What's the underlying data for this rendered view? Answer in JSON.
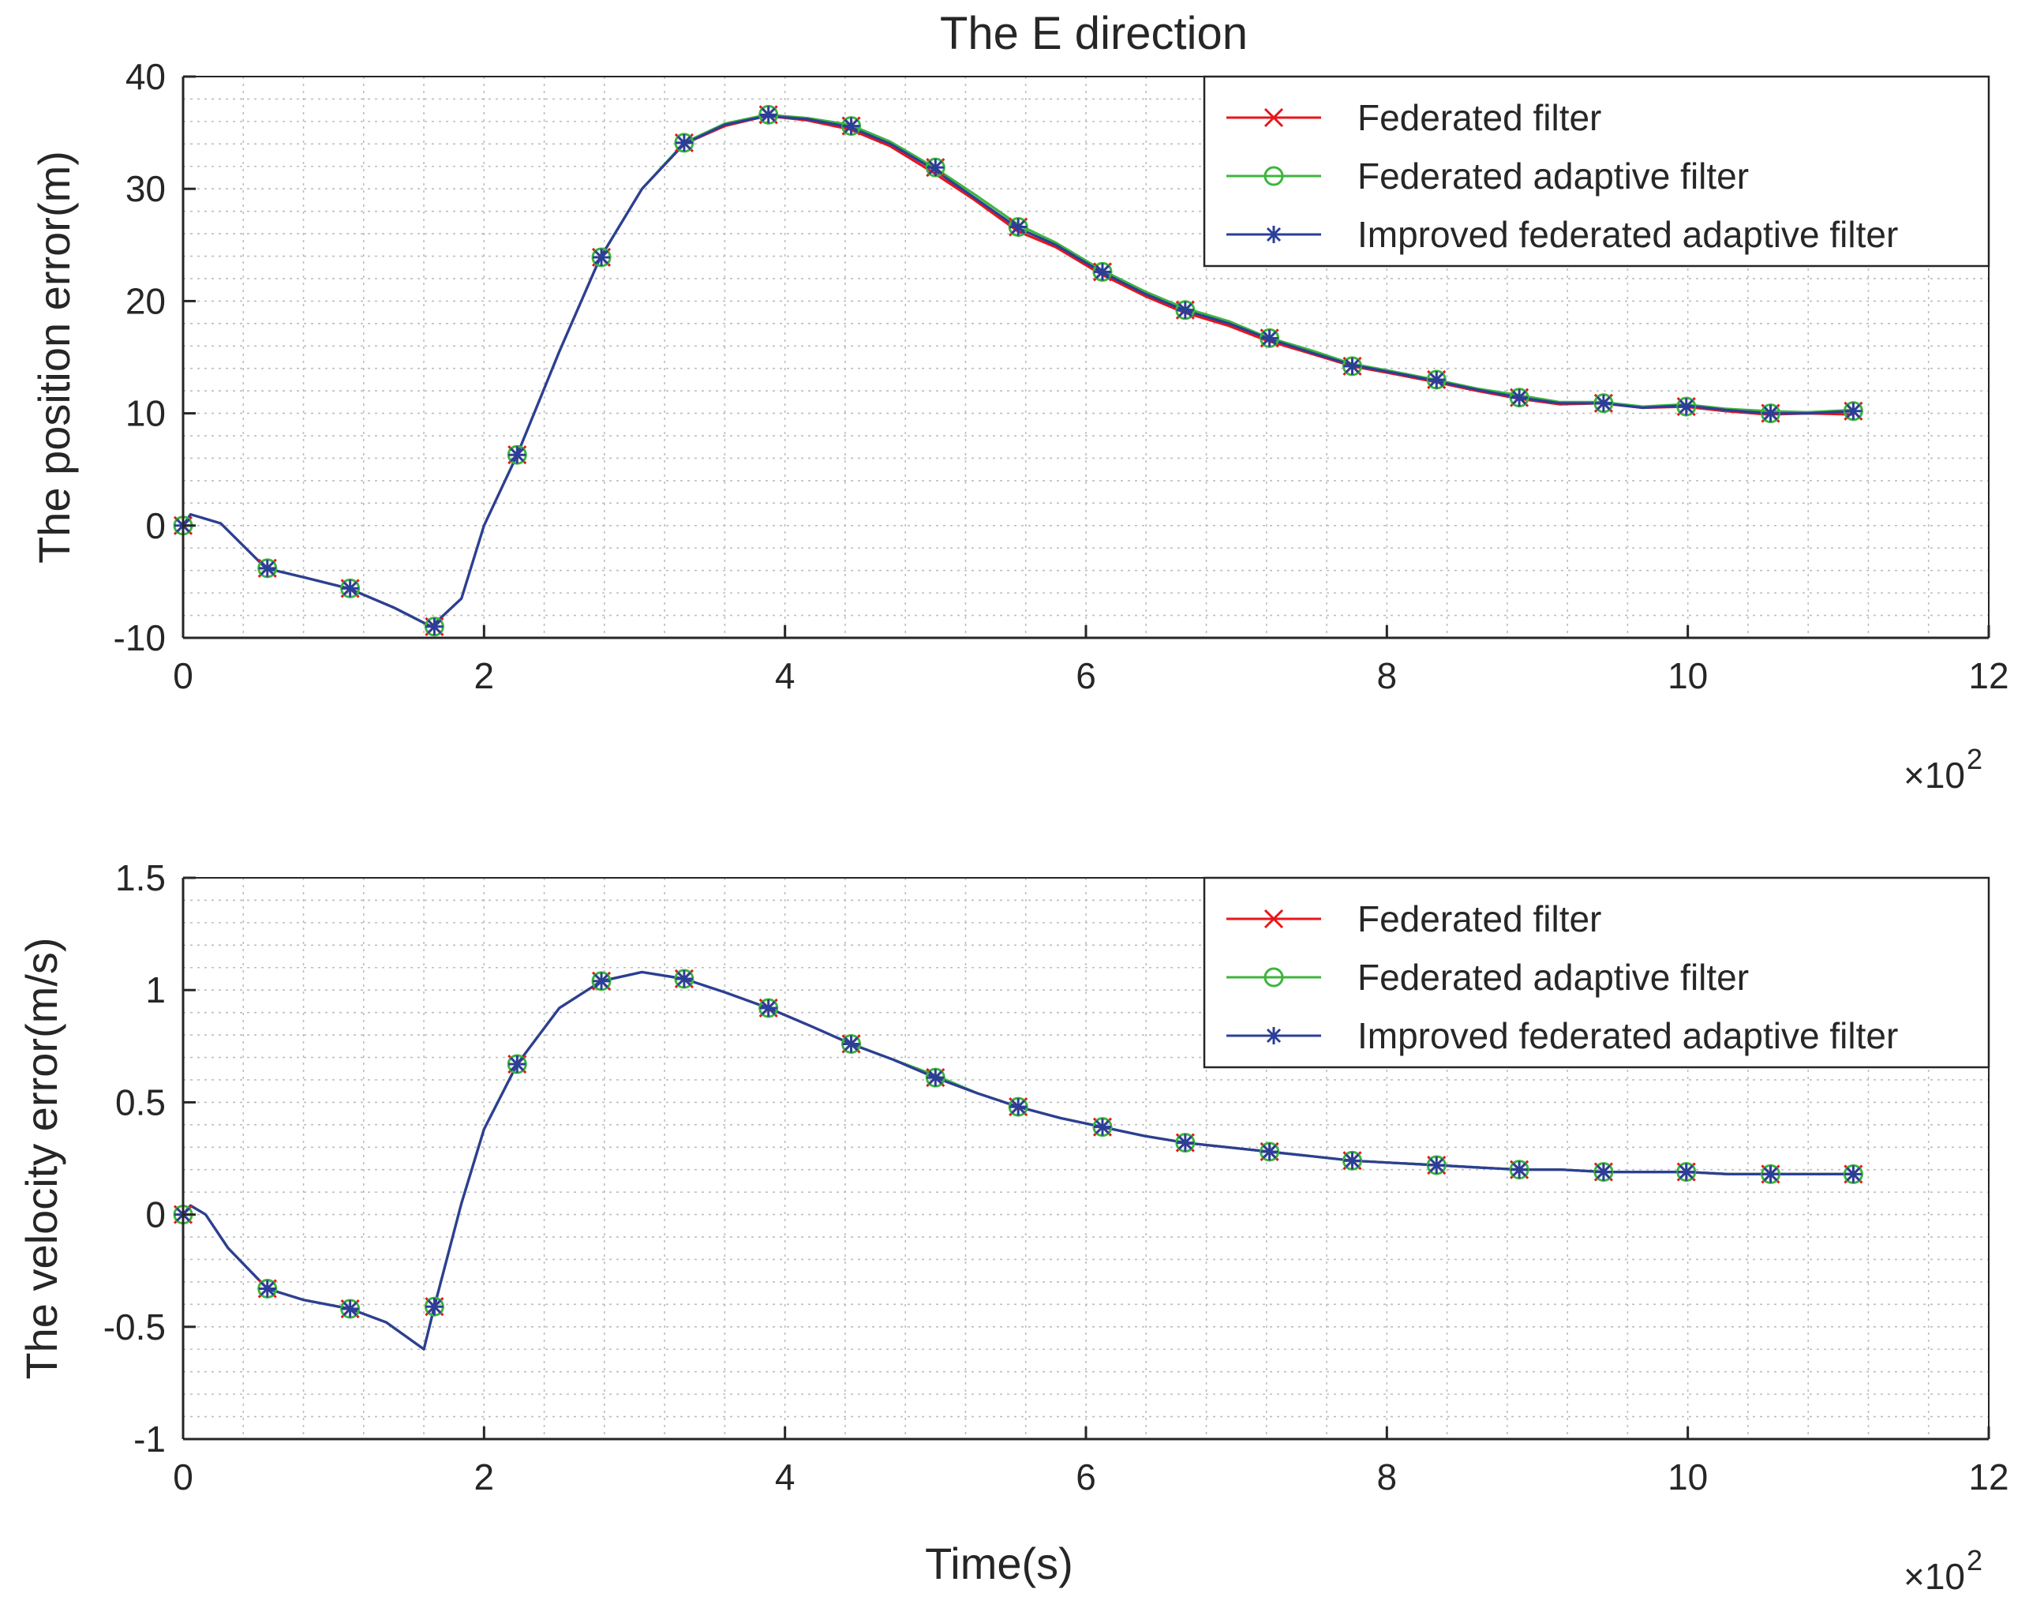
{
  "figure_title": "The E direction",
  "colors": {
    "federated": "#e8151b",
    "adaptive": "#3db53d",
    "improved": "#2b3f97",
    "grid": "#bdbdbd",
    "axis": "#262626"
  },
  "legend_entries": [
    {
      "name": "Federated filter",
      "color": "#e8151b",
      "marker": "x"
    },
    {
      "name": "Federated adaptive filter",
      "color": "#3db53d",
      "marker": "o"
    },
    {
      "name": "Improved federated adaptive filter",
      "color": "#2b3f97",
      "marker": "*"
    }
  ],
  "chart_data": [
    {
      "type": "line",
      "title": "The E direction",
      "xlabel": "",
      "ylabel": "The position error(m)",
      "xlim": [
        0,
        12
      ],
      "ylim": [
        -10,
        40
      ],
      "xticks": [
        0,
        2,
        4,
        6,
        8,
        10,
        12
      ],
      "xtick_labels": [
        "0",
        "2",
        "4",
        "6",
        "8",
        "10",
        "12"
      ],
      "yticks": [
        -10,
        0,
        10,
        20,
        30,
        40
      ],
      "ytick_labels": [
        "-10",
        "0",
        "10",
        "20",
        "30",
        "40"
      ],
      "x_exponent_base": "×10",
      "x_exponent_power": "2",
      "grid": true,
      "legend_position": "top-right",
      "series": [
        {
          "name": "Federated filter",
          "x": [
            0,
            0.05,
            0.25,
            0.55,
            0.8,
            1.1,
            1.4,
            1.65,
            1.85,
            2.0,
            2.22,
            2.5,
            2.77,
            3.05,
            3.33,
            3.6,
            3.88,
            4.15,
            4.43,
            4.7,
            4.98,
            5.25,
            5.55,
            5.8,
            6.1,
            6.4,
            6.65,
            6.95,
            7.2,
            7.5,
            7.77,
            8.05,
            8.32,
            8.6,
            8.88,
            9.15,
            9.43,
            9.7,
            9.98,
            10.25,
            10.53,
            10.8,
            11.1
          ],
          "y": [
            0,
            1.0,
            0.2,
            -3.8,
            -4.6,
            -5.6,
            -7.3,
            -9.0,
            -6.5,
            0.0,
            6.3,
            15.5,
            23.8,
            30.0,
            34.0,
            35.6,
            36.5,
            36.1,
            35.3,
            33.8,
            31.5,
            29.1,
            26.2,
            24.8,
            22.4,
            20.4,
            19.0,
            17.8,
            16.5,
            15.3,
            14.2,
            13.5,
            12.8,
            12.0,
            11.3,
            10.8,
            10.9,
            10.5,
            10.6,
            10.2,
            9.9,
            10.0,
            9.9
          ]
        },
        {
          "name": "Federated adaptive filter",
          "x": [
            0,
            0.05,
            0.25,
            0.55,
            0.8,
            1.1,
            1.4,
            1.65,
            1.85,
            2.0,
            2.22,
            2.5,
            2.77,
            3.05,
            3.33,
            3.6,
            3.88,
            4.15,
            4.43,
            4.7,
            4.98,
            5.25,
            5.55,
            5.8,
            6.1,
            6.4,
            6.65,
            6.95,
            7.2,
            7.5,
            7.77,
            8.05,
            8.32,
            8.6,
            8.88,
            9.15,
            9.43,
            9.7,
            9.98,
            10.25,
            10.53,
            10.8,
            11.1
          ],
          "y": [
            0,
            1.0,
            0.2,
            -3.8,
            -4.6,
            -5.6,
            -7.3,
            -9.0,
            -6.5,
            0.0,
            6.3,
            15.5,
            23.8,
            30.0,
            34.1,
            35.8,
            36.6,
            36.3,
            35.7,
            34.2,
            32.0,
            29.6,
            26.8,
            25.2,
            22.8,
            20.8,
            19.4,
            18.2,
            16.8,
            15.6,
            14.4,
            13.7,
            13.0,
            12.2,
            11.6,
            11.0,
            11.0,
            10.6,
            10.8,
            10.4,
            10.2,
            10.1,
            10.3
          ]
        },
        {
          "name": "Improved federated adaptive filter",
          "x": [
            0,
            0.05,
            0.25,
            0.55,
            0.8,
            1.1,
            1.4,
            1.65,
            1.85,
            2.0,
            2.22,
            2.5,
            2.77,
            3.05,
            3.33,
            3.6,
            3.88,
            4.15,
            4.43,
            4.7,
            4.98,
            5.25,
            5.55,
            5.8,
            6.1,
            6.4,
            6.65,
            6.95,
            7.2,
            7.5,
            7.77,
            8.05,
            8.32,
            8.6,
            8.88,
            9.15,
            9.43,
            9.7,
            9.98,
            10.25,
            10.53,
            10.8,
            11.1
          ],
          "y": [
            0,
            1.0,
            0.2,
            -3.8,
            -4.6,
            -5.6,
            -7.3,
            -9.0,
            -6.5,
            0.0,
            6.3,
            15.5,
            23.8,
            30.0,
            34.0,
            35.7,
            36.5,
            36.2,
            35.5,
            34.0,
            31.8,
            29.3,
            26.5,
            25.0,
            22.6,
            20.6,
            19.2,
            18.0,
            16.7,
            15.4,
            14.3,
            13.6,
            12.9,
            12.1,
            11.4,
            10.9,
            10.9,
            10.5,
            10.7,
            10.3,
            10.0,
            10.0,
            10.2
          ]
        }
      ],
      "markers": {
        "x": [
          0,
          0.56,
          1.11,
          1.67,
          2.22,
          2.78,
          3.33,
          3.89,
          4.44,
          5.0,
          5.55,
          6.11,
          6.66,
          7.22,
          7.77,
          8.33,
          8.88,
          9.44,
          9.99,
          10.55,
          11.1
        ],
        "y": [
          0,
          -3.8,
          -5.6,
          -9.0,
          6.3,
          23.9,
          34.1,
          36.6,
          35.6,
          31.9,
          26.6,
          22.6,
          19.2,
          16.7,
          14.2,
          13.0,
          11.4,
          10.9,
          10.6,
          10.0,
          10.2
        ]
      }
    },
    {
      "type": "line",
      "title": "",
      "xlabel": "Time(s)",
      "ylabel": "The velocity error(m/s)",
      "xlim": [
        0,
        12
      ],
      "ylim": [
        -1,
        1.5
      ],
      "xticks": [
        0,
        2,
        4,
        6,
        8,
        10,
        12
      ],
      "xtick_labels": [
        "0",
        "2",
        "4",
        "6",
        "8",
        "10",
        "12"
      ],
      "yticks": [
        -1,
        -0.5,
        0,
        0.5,
        1,
        1.5
      ],
      "ytick_labels": [
        "-1",
        "-0.5",
        "0",
        "0.5",
        "1",
        "1.5"
      ],
      "x_exponent_base": "×10",
      "x_exponent_power": "2",
      "grid": true,
      "legend_position": "top-right",
      "series": [
        {
          "name": "Federated filter",
          "x": [
            0,
            0.05,
            0.15,
            0.3,
            0.56,
            0.8,
            1.11,
            1.35,
            1.6,
            1.67,
            1.85,
            2.0,
            2.22,
            2.5,
            2.78,
            3.05,
            3.33,
            3.6,
            3.89,
            4.17,
            4.44,
            4.72,
            5.0,
            5.28,
            5.55,
            5.83,
            6.11,
            6.39,
            6.66,
            6.94,
            7.22,
            7.5,
            7.77,
            8.05,
            8.33,
            8.6,
            8.88,
            9.16,
            9.44,
            9.72,
            9.99,
            10.27,
            10.55,
            10.83,
            11.1
          ],
          "y": [
            0,
            0.04,
            0.0,
            -0.15,
            -0.33,
            -0.38,
            -0.42,
            -0.48,
            -0.6,
            -0.41,
            0.05,
            0.38,
            0.67,
            0.92,
            1.04,
            1.08,
            1.05,
            0.99,
            0.92,
            0.84,
            0.76,
            0.69,
            0.61,
            0.54,
            0.48,
            0.43,
            0.39,
            0.35,
            0.32,
            0.3,
            0.28,
            0.26,
            0.24,
            0.23,
            0.22,
            0.21,
            0.2,
            0.2,
            0.19,
            0.19,
            0.19,
            0.18,
            0.18,
            0.18,
            0.18
          ]
        },
        {
          "name": "Federated adaptive filter",
          "x": [
            0,
            0.05,
            0.15,
            0.3,
            0.56,
            0.8,
            1.11,
            1.35,
            1.6,
            1.67,
            1.85,
            2.0,
            2.22,
            2.5,
            2.78,
            3.05,
            3.33,
            3.6,
            3.89,
            4.17,
            4.44,
            4.72,
            5.0,
            5.28,
            5.55,
            5.83,
            6.11,
            6.39,
            6.66,
            6.94,
            7.22,
            7.5,
            7.77,
            8.05,
            8.33,
            8.6,
            8.88,
            9.16,
            9.44,
            9.72,
            9.99,
            10.27,
            10.55,
            10.83,
            11.1
          ],
          "y": [
            0,
            0.04,
            0.0,
            -0.15,
            -0.33,
            -0.38,
            -0.42,
            -0.48,
            -0.6,
            -0.41,
            0.05,
            0.38,
            0.67,
            0.92,
            1.04,
            1.08,
            1.05,
            0.99,
            0.92,
            0.84,
            0.76,
            0.69,
            0.62,
            0.54,
            0.48,
            0.43,
            0.39,
            0.35,
            0.32,
            0.3,
            0.28,
            0.26,
            0.24,
            0.23,
            0.22,
            0.21,
            0.2,
            0.2,
            0.19,
            0.19,
            0.19,
            0.18,
            0.18,
            0.18,
            0.18
          ]
        },
        {
          "name": "Improved federated adaptive filter",
          "x": [
            0,
            0.05,
            0.15,
            0.3,
            0.56,
            0.8,
            1.11,
            1.35,
            1.6,
            1.67,
            1.85,
            2.0,
            2.22,
            2.5,
            2.78,
            3.05,
            3.33,
            3.6,
            3.89,
            4.17,
            4.44,
            4.72,
            5.0,
            5.28,
            5.55,
            5.83,
            6.11,
            6.39,
            6.66,
            6.94,
            7.22,
            7.5,
            7.77,
            8.05,
            8.33,
            8.6,
            8.88,
            9.16,
            9.44,
            9.72,
            9.99,
            10.27,
            10.55,
            10.83,
            11.1
          ],
          "y": [
            0,
            0.04,
            0.0,
            -0.15,
            -0.33,
            -0.38,
            -0.42,
            -0.48,
            -0.6,
            -0.41,
            0.05,
            0.38,
            0.67,
            0.92,
            1.04,
            1.08,
            1.05,
            0.99,
            0.92,
            0.84,
            0.76,
            0.69,
            0.61,
            0.54,
            0.48,
            0.43,
            0.39,
            0.35,
            0.32,
            0.3,
            0.28,
            0.26,
            0.24,
            0.23,
            0.22,
            0.21,
            0.2,
            0.2,
            0.19,
            0.19,
            0.19,
            0.18,
            0.18,
            0.18,
            0.18
          ]
        }
      ],
      "markers": {
        "x": [
          0,
          0.56,
          1.11,
          1.67,
          2.22,
          2.78,
          3.33,
          3.89,
          4.44,
          5.0,
          5.55,
          6.11,
          6.66,
          7.22,
          7.77,
          8.33,
          8.88,
          9.44,
          9.99,
          10.55,
          11.1
        ],
        "y": [
          0,
          -0.33,
          -0.42,
          -0.41,
          0.67,
          1.04,
          1.05,
          0.92,
          0.76,
          0.61,
          0.48,
          0.39,
          0.32,
          0.28,
          0.24,
          0.22,
          0.2,
          0.19,
          0.19,
          0.18,
          0.18
        ]
      }
    }
  ]
}
